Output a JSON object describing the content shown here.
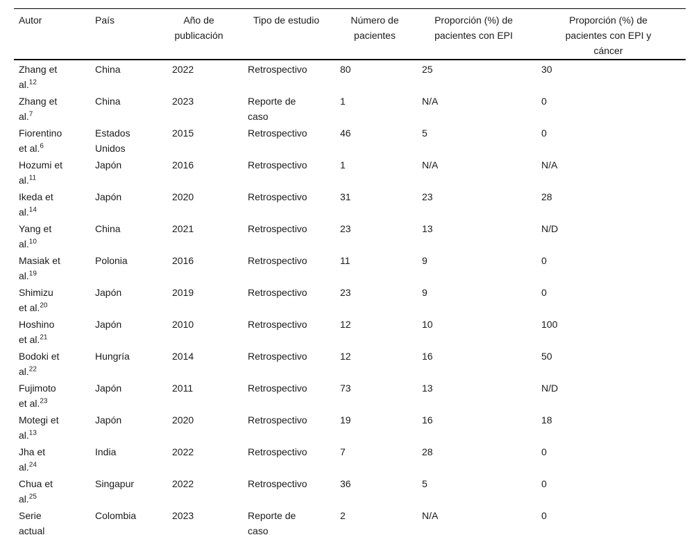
{
  "table": {
    "columns": [
      {
        "label": "Autor"
      },
      {
        "label": "País"
      },
      {
        "label": "Año de publicación"
      },
      {
        "label": "Tipo de estudio"
      },
      {
        "label": "Número de pacientes"
      },
      {
        "label": "Proporción (%) de pacientes con EPI"
      },
      {
        "label": "Proporción (%) de pacientes con EPI y cáncer"
      }
    ],
    "rows": [
      {
        "autor": "Zhang et\nal.",
        "autor_sup": "12",
        "pais": "China",
        "anio": "2022",
        "tipo": "Retrospectivo",
        "num": "80",
        "prop_epi": "25",
        "prop_epi_cancer": "30"
      },
      {
        "autor": "Zhang et\nal.",
        "autor_sup": "7",
        "pais": "China",
        "anio": "2023",
        "tipo": "Reporte de\ncaso",
        "num": "1",
        "prop_epi": "N/A",
        "prop_epi_cancer": "0"
      },
      {
        "autor": "Fiorentino\net al.",
        "autor_sup": "6",
        "pais": "Estados\nUnidos",
        "anio": "2015",
        "tipo": "Retrospectivo",
        "num": "46",
        "prop_epi": "5",
        "prop_epi_cancer": "0"
      },
      {
        "autor": "Hozumi et\nal.",
        "autor_sup": "11",
        "pais": "Japón",
        "anio": "2016",
        "tipo": "Retrospectivo",
        "num": "1",
        "prop_epi": "N/A",
        "prop_epi_cancer": "N/A"
      },
      {
        "autor": "Ikeda et\nal.",
        "autor_sup": "14",
        "pais": "Japón",
        "anio": "2020",
        "tipo": "Retrospectivo",
        "num": "31",
        "prop_epi": "23",
        "prop_epi_cancer": "28"
      },
      {
        "autor": "Yang et\nal.",
        "autor_sup": "10",
        "pais": "China",
        "anio": "2021",
        "tipo": "Retrospectivo",
        "num": "23",
        "prop_epi": "13",
        "prop_epi_cancer": "N/D"
      },
      {
        "autor": "Masiak et\nal.",
        "autor_sup": "19",
        "pais": "Polonia",
        "anio": "2016",
        "tipo": "Retrospectivo",
        "num": "11",
        "prop_epi": "9",
        "prop_epi_cancer": "0"
      },
      {
        "autor": "Shimizu\net al.",
        "autor_sup": "20",
        "pais": "Japón",
        "anio": "2019",
        "tipo": "Retrospectivo",
        "num": "23",
        "prop_epi": "9",
        "prop_epi_cancer": "0"
      },
      {
        "autor": "Hoshino\net al.",
        "autor_sup": "21",
        "pais": "Japón",
        "anio": "2010",
        "tipo": "Retrospectivo",
        "num": "12",
        "prop_epi": "10",
        "prop_epi_cancer": "100"
      },
      {
        "autor": "Bodoki et\nal.",
        "autor_sup": "22",
        "pais": "Hungría",
        "anio": "2014",
        "tipo": "Retrospectivo",
        "num": "12",
        "prop_epi": "16",
        "prop_epi_cancer": "50"
      },
      {
        "autor": "Fujimoto\net al.",
        "autor_sup": "23",
        "pais": "Japón",
        "anio": "2011",
        "tipo": "Retrospectivo",
        "num": "73",
        "prop_epi": "13",
        "prop_epi_cancer": "N/D"
      },
      {
        "autor": "Motegi et\nal.",
        "autor_sup": "13",
        "pais": "Japón",
        "anio": "2020",
        "tipo": "Retrospectivo",
        "num": "19",
        "prop_epi": "16",
        "prop_epi_cancer": "18"
      },
      {
        "autor": "Jha et\nal.",
        "autor_sup": "24",
        "pais": "India",
        "anio": "2022",
        "tipo": "Retrospectivo",
        "num": "7",
        "prop_epi": "28",
        "prop_epi_cancer": "0"
      },
      {
        "autor": "Chua et\nal.",
        "autor_sup": "25",
        "pais": "Singapur",
        "anio": "2022",
        "tipo": "Retrospectivo",
        "num": "36",
        "prop_epi": "5",
        "prop_epi_cancer": "0"
      },
      {
        "autor": "Serie\nactual",
        "autor_sup": "",
        "pais": "Colombia",
        "anio": "2023",
        "tipo": "Reporte de\ncaso",
        "num": "2",
        "prop_epi": "N/A",
        "prop_epi_cancer": "0"
      }
    ]
  }
}
